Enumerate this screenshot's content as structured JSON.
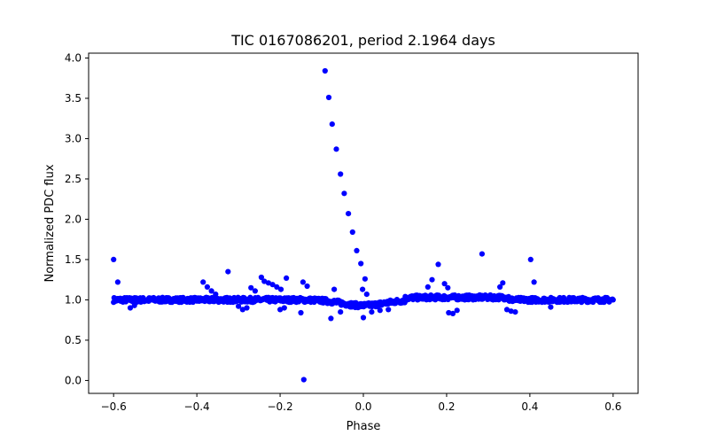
{
  "colors": {
    "points": "#0000ff",
    "axes": "#000000",
    "background": "#ffffff"
  },
  "chart_data": {
    "type": "scatter",
    "title": "TIC 0167086201, period 2.1964 days",
    "xlabel": "Phase",
    "ylabel": "Normalized PDC flux",
    "xlim": [
      -0.66,
      0.66
    ],
    "ylim": [
      -0.16,
      4.06
    ],
    "xticks": [
      -0.6,
      -0.4,
      -0.2,
      0.0,
      0.2,
      0.4,
      0.6
    ],
    "xtick_labels": [
      "−0.6",
      "−0.4",
      "−0.2",
      "0.0",
      "0.2",
      "0.4",
      "0.6"
    ],
    "yticks": [
      0.0,
      0.5,
      1.0,
      1.5,
      2.0,
      2.5,
      3.0,
      3.5,
      4.0
    ],
    "ytick_labels": [
      "0.0",
      "0.5",
      "1.0",
      "1.5",
      "2.0",
      "2.5",
      "3.0",
      "3.5",
      "4.0"
    ],
    "grid": false,
    "series": [
      {
        "name": "baseline",
        "description": "dense band of points near flux 1.0 across phase -0.6 to 0.6, dipping to about 0.93 near phase 0.0",
        "x_range": [
          -0.6,
          0.6
        ],
        "mean_flux": 1.0
      },
      {
        "name": "flare and outliers",
        "points": [
          [
            -0.092,
            3.84
          ],
          [
            -0.083,
            3.51
          ],
          [
            -0.075,
            3.18
          ],
          [
            -0.065,
            2.87
          ],
          [
            -0.055,
            2.56
          ],
          [
            -0.046,
            2.32
          ],
          [
            -0.036,
            2.07
          ],
          [
            -0.026,
            1.84
          ],
          [
            -0.016,
            1.61
          ],
          [
            -0.006,
            1.45
          ],
          [
            0.004,
            1.26
          ],
          [
            -0.002,
            1.13
          ],
          [
            0.008,
            1.07
          ],
          [
            -0.6,
            1.5
          ],
          [
            -0.59,
            1.22
          ],
          [
            -0.325,
            1.35
          ],
          [
            -0.385,
            1.22
          ],
          [
            -0.375,
            1.16
          ],
          [
            -0.365,
            1.11
          ],
          [
            -0.355,
            1.07
          ],
          [
            -0.245,
            1.28
          ],
          [
            -0.238,
            1.23
          ],
          [
            -0.228,
            1.21
          ],
          [
            -0.218,
            1.19
          ],
          [
            -0.208,
            1.16
          ],
          [
            -0.198,
            1.13
          ],
          [
            -0.185,
            1.27
          ],
          [
            -0.145,
            1.22
          ],
          [
            -0.135,
            1.17
          ],
          [
            -0.27,
            1.15
          ],
          [
            -0.26,
            1.11
          ],
          [
            0.18,
            1.44
          ],
          [
            0.165,
            1.25
          ],
          [
            0.155,
            1.16
          ],
          [
            0.285,
            1.57
          ],
          [
            0.402,
            1.5
          ],
          [
            0.41,
            1.22
          ],
          [
            0.335,
            1.21
          ],
          [
            0.328,
            1.16
          ],
          [
            0.195,
            1.2
          ],
          [
            0.203,
            1.15
          ],
          [
            -0.143,
            0.01
          ],
          [
            -0.078,
            0.77
          ],
          [
            0.0,
            0.78
          ],
          [
            -0.07,
            1.13
          ],
          [
            -0.3,
            0.92
          ],
          [
            -0.29,
            0.88
          ],
          [
            -0.28,
            0.9
          ],
          [
            -0.2,
            0.88
          ],
          [
            -0.19,
            0.9
          ],
          [
            -0.15,
            0.84
          ],
          [
            -0.055,
            0.85
          ],
          [
            -0.56,
            0.9
          ],
          [
            -0.55,
            0.93
          ],
          [
            0.205,
            0.84
          ],
          [
            0.215,
            0.83
          ],
          [
            0.225,
            0.87
          ],
          [
            0.355,
            0.86
          ],
          [
            0.365,
            0.85
          ],
          [
            0.345,
            0.88
          ],
          [
            0.45,
            0.91
          ],
          [
            0.02,
            0.85
          ],
          [
            0.04,
            0.87
          ],
          [
            0.06,
            0.88
          ]
        ]
      }
    ]
  }
}
